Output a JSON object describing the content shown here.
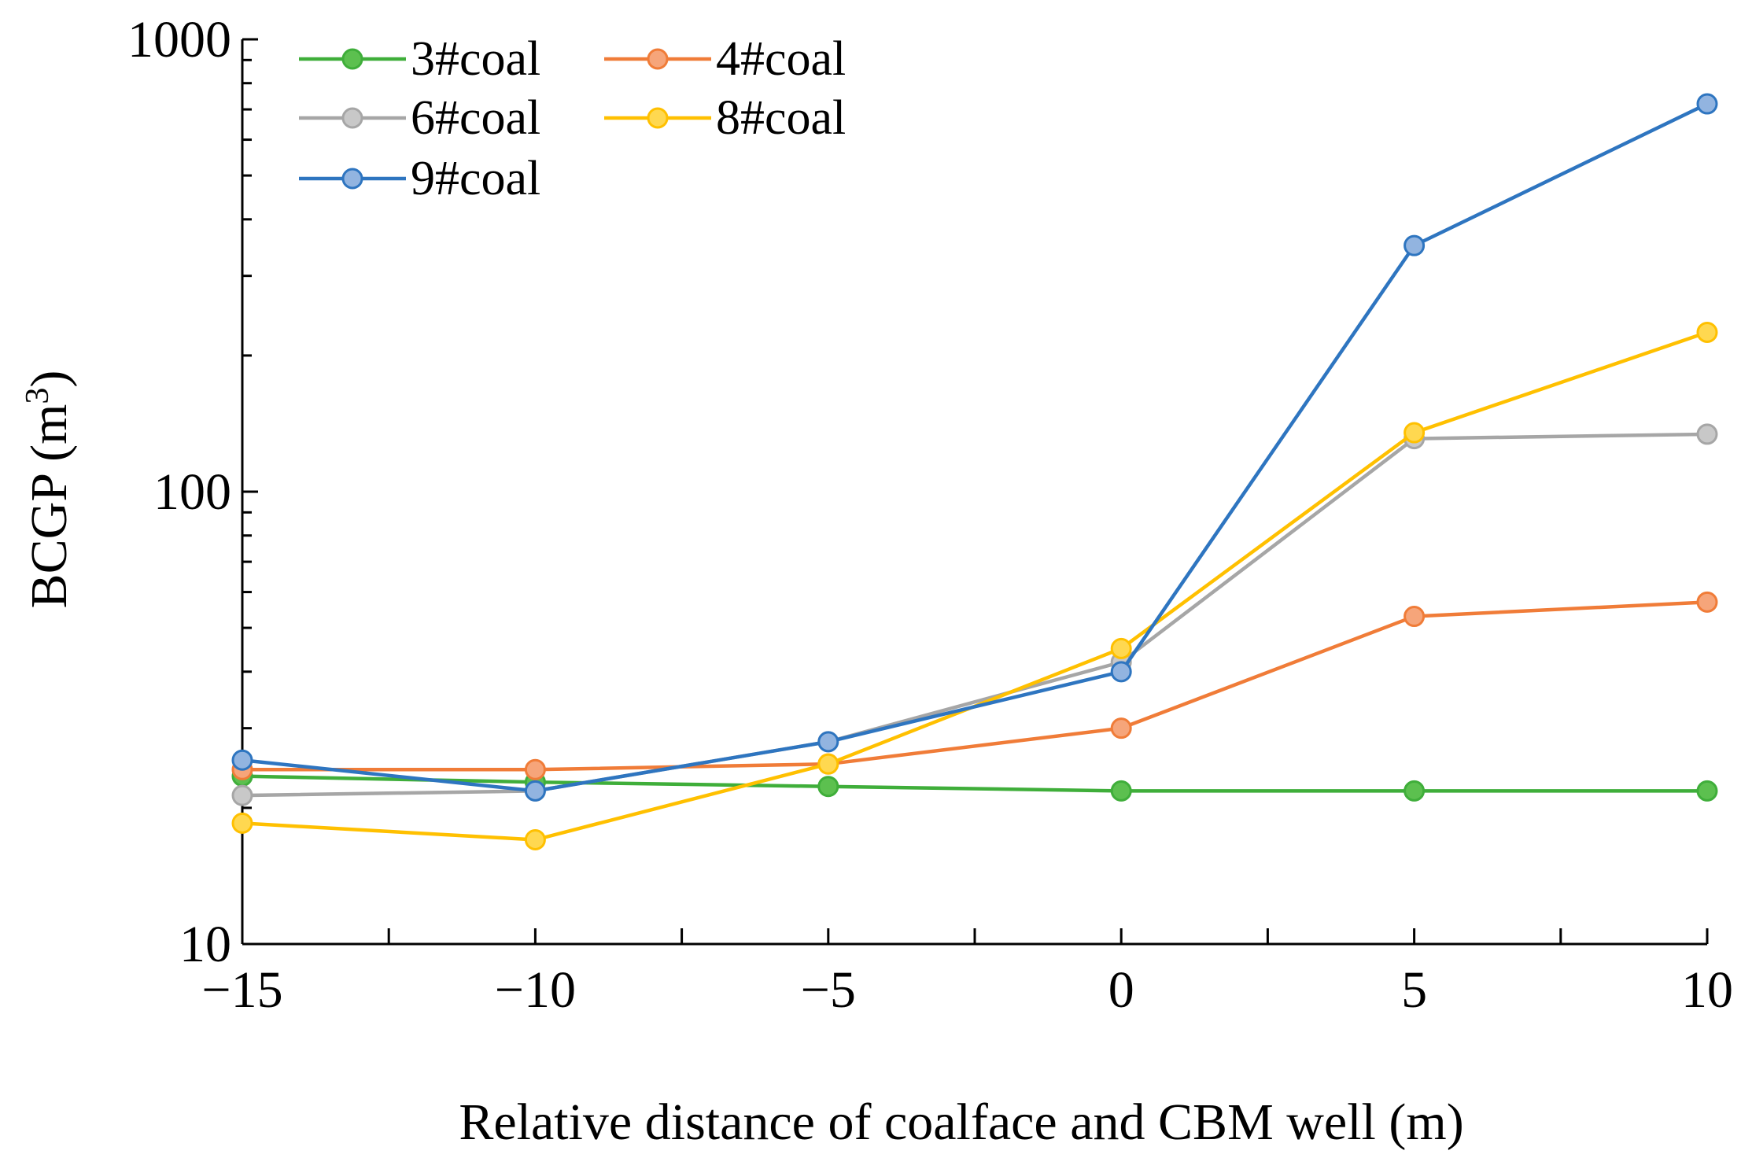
{
  "chart_data": {
    "type": "line",
    "title": "",
    "xlabel": "Relative distance of coalface and CBM well (m)",
    "ylabel": "BCGP (m",
    "ylabel_superscript": "3",
    "ylabel_suffix": ")",
    "yscale": "log",
    "xlim": [
      -15,
      10
    ],
    "ylim": [
      10,
      1000
    ],
    "x": [
      -15,
      -10,
      -5,
      0,
      5,
      10
    ],
    "x_tick_labels": [
      "−15",
      "−10",
      "−5",
      "0",
      "5",
      "10"
    ],
    "y_tick_values": [
      10,
      100,
      1000
    ],
    "y_tick_labels": [
      "10",
      "100",
      "1000"
    ],
    "legend_position": "top-left",
    "series": [
      {
        "name": "3#coal",
        "color": "#3FAE3A",
        "marker_fill": "#5CC04F",
        "values": [
          23.5,
          22.8,
          22.3,
          21.8,
          21.8,
          21.8
        ]
      },
      {
        "name": "4#coal",
        "color": "#F07C38",
        "marker_fill": "#F6A57A",
        "values": [
          24.3,
          24.3,
          25.0,
          30.0,
          53.0,
          57.0
        ]
      },
      {
        "name": "6#coal",
        "color": "#A6A6A6",
        "marker_fill": "#C8C8C8",
        "values": [
          21.3,
          21.8,
          28.0,
          42.0,
          131.0,
          134.0
        ]
      },
      {
        "name": "8#coal",
        "color": "#FFC000",
        "marker_fill": "#FFD850",
        "values": [
          18.5,
          17.0,
          25.0,
          45.0,
          135.0,
          225.0
        ]
      },
      {
        "name": "9#coal",
        "color": "#2E75C0",
        "marker_fill": "#92B4E0",
        "values": [
          25.5,
          21.8,
          28.0,
          40.0,
          350.0,
          720.0
        ]
      }
    ]
  }
}
